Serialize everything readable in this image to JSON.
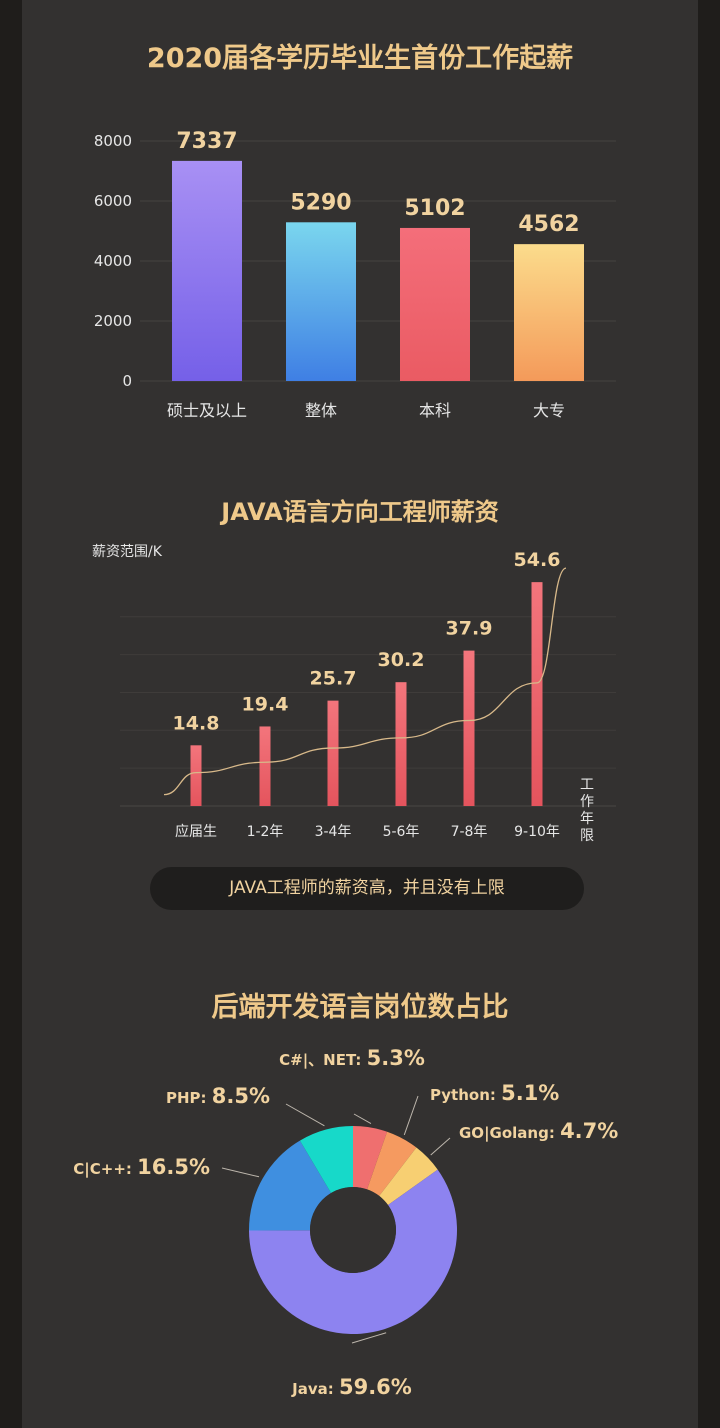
{
  "charts": [
    {
      "type": "bar",
      "title": "2020届各学历毕业生首份工作起薪",
      "categories": [
        "硕士及以上",
        "整体",
        "本科",
        "大专"
      ],
      "values": [
        7337,
        5290,
        5102,
        4562
      ],
      "value_labels": [
        "7337",
        "5290",
        "5102",
        "4562"
      ],
      "yticks": [
        "0",
        "2000",
        "4000",
        "6000",
        "8000"
      ],
      "ylim": [
        0,
        8000
      ],
      "grid": true
    },
    {
      "type": "bar",
      "title": "JAVA语言方向工程师薪资",
      "ylabel": "薪资范围/K",
      "xlabel": "工作年限",
      "categories": [
        "应届生",
        "1-2年",
        "3-4年",
        "5-6年",
        "7-8年",
        "9-10年"
      ],
      "values": [
        14.8,
        19.4,
        25.7,
        30.2,
        37.9,
        54.6
      ],
      "value_labels": [
        "14.8",
        "19.4",
        "25.7",
        "30.2",
        "37.9",
        "54.6"
      ],
      "ylim": [
        0,
        60
      ],
      "trend_line": true,
      "grid": true
    },
    {
      "type": "pie",
      "title": "后端开发语言岗位数占比",
      "slices": [
        {
          "label": "Java:",
          "value": 59.6,
          "display": "59.6%",
          "color": "#8d83f0"
        },
        {
          "label": "C|C++:",
          "value": 16.5,
          "display": "16.5%",
          "color": "#3f8fe0"
        },
        {
          "label": "PHP:",
          "value": 8.5,
          "display": "8.5%",
          "color": "#17d9c9"
        },
        {
          "label": "C#|、NET:",
          "value": 5.3,
          "display": "5.3%",
          "color": "#ef6f6f"
        },
        {
          "label": "Python:",
          "value": 5.1,
          "display": "5.1%",
          "color": "#f59a60"
        },
        {
          "label": "GO|Golang:",
          "value": 4.7,
          "display": "4.7%",
          "color": "#f7cf72"
        }
      ]
    }
  ],
  "banner": "JAVA工程师的薪资高，并且没有上限",
  "colors": {
    "background": "#333130",
    "title": "#efc98a",
    "value_label": "#f1d3a0",
    "axis_text": "#e6e6e6"
  }
}
